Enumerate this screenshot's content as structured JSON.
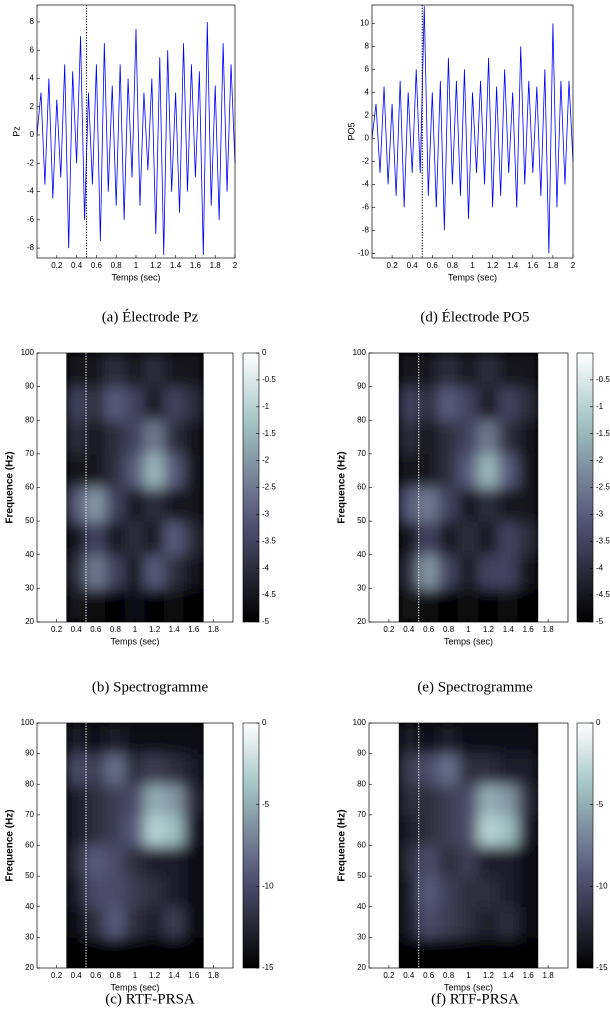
{
  "chart_data": [
    {
      "type": "line",
      "caption": "(a) Électrode Pz",
      "xlabel": "Temps (sec)",
      "ylabel": "Pz",
      "color": "#0000ff",
      "marker_x": 0.5,
      "x": [
        0,
        0.04,
        0.08,
        0.12,
        0.16,
        0.2,
        0.24,
        0.28,
        0.32,
        0.36,
        0.4,
        0.44,
        0.48,
        0.52,
        0.56,
        0.6,
        0.64,
        0.68,
        0.72,
        0.76,
        0.8,
        0.84,
        0.88,
        0.92,
        0.96,
        1,
        1.04,
        1.08,
        1.12,
        1.16,
        1.2,
        1.24,
        1.28,
        1.32,
        1.36,
        1.4,
        1.44,
        1.48,
        1.52,
        1.56,
        1.6,
        1.64,
        1.68,
        1.72,
        1.76,
        1.8,
        1.84,
        1.88,
        1.92,
        1.96,
        2
      ],
      "values": [
        0,
        3,
        -3.5,
        4,
        -4.5,
        2.5,
        -3,
        5,
        -8,
        4.5,
        -2,
        7,
        -6,
        3,
        -3.5,
        5,
        -7.5,
        6.5,
        -4,
        3.5,
        -5,
        5,
        -6,
        4,
        -3,
        7.5,
        -5,
        3,
        -2.5,
        4,
        -7,
        5.5,
        -8.5,
        6,
        -4,
        3,
        -5.5,
        6.5,
        -4,
        5,
        -3,
        4.5,
        -8.5,
        8,
        -5,
        3.5,
        -6,
        6.5,
        -4,
        5,
        -2
      ],
      "xlim": [
        0,
        2
      ],
      "xticks": [
        0.2,
        0.4,
        0.6,
        0.8,
        1,
        1.2,
        1.4,
        1.6,
        1.8,
        2
      ],
      "ylim": [
        -8.7,
        9.2
      ],
      "yticks": [
        -8,
        -6,
        -4,
        -2,
        0,
        2,
        4,
        6,
        8
      ]
    },
    {
      "type": "heatmap",
      "caption": "(b) Spectrogramme",
      "xlabel": "Temps (sec)",
      "ylabel": "Frequence (Hz)",
      "colormap": "bone",
      "marker_x": 0.5,
      "x": [
        0.4,
        0.6,
        0.8,
        1,
        1.2,
        1.4,
        1.6
      ],
      "y": [
        25,
        35,
        45,
        55,
        65,
        75,
        85,
        95
      ],
      "z": [
        [
          -4.5,
          -4.8,
          -5,
          -4.7,
          -5,
          -4.8,
          -5
        ],
        [
          -4,
          -2.5,
          -3.5,
          -4.5,
          -3,
          -4,
          -4.5
        ],
        [
          -4.5,
          -3.5,
          -4.5,
          -4,
          -4.5,
          -3,
          -4
        ],
        [
          -3,
          -2,
          -3.5,
          -4.5,
          -4,
          -4.5,
          -4.5
        ],
        [
          -4.5,
          -4.5,
          -4,
          -3,
          -1.5,
          -3,
          -4.5
        ],
        [
          -4,
          -4.5,
          -4,
          -3.5,
          -2.5,
          -4,
          -4.5
        ],
        [
          -3.5,
          -4,
          -3,
          -3.5,
          -4.5,
          -3.5,
          -4
        ],
        [
          -4.5,
          -4.5,
          -4,
          -4.5,
          -4,
          -4.5,
          -4.5
        ]
      ],
      "xlim": [
        0,
        2
      ],
      "xticks": [
        0.2,
        0.4,
        0.6,
        0.8,
        1,
        1.2,
        1.4,
        1.6,
        1.8
      ],
      "ylim": [
        20,
        100
      ],
      "yticks": [
        20,
        30,
        40,
        50,
        60,
        70,
        80,
        90,
        100
      ],
      "zlim": [
        -5,
        0
      ],
      "zticks": [
        0,
        -0.5,
        -1,
        -1.5,
        -2,
        -2.5,
        -3,
        -3.5,
        -4,
        -4.5,
        -5
      ]
    },
    {
      "type": "heatmap",
      "caption": "(c) RTF-PRSA",
      "xlabel": "Temps (sec)",
      "ylabel": "Frequence (Hz)",
      "colormap": "bone",
      "marker_x": 0.5,
      "x": [
        0.4,
        0.6,
        0.8,
        1,
        1.2,
        1.4,
        1.6
      ],
      "y": [
        25,
        35,
        45,
        55,
        65,
        75,
        85,
        95
      ],
      "z": [
        [
          -15,
          -15,
          -15,
          -15,
          -15,
          -15,
          -15
        ],
        [
          -14,
          -12,
          -9,
          -12,
          -13,
          -11,
          -14
        ],
        [
          -13,
          -10,
          -10,
          -11,
          -12,
          -13,
          -14
        ],
        [
          -12,
          -9,
          -10,
          -12,
          -13,
          -13,
          -14
        ],
        [
          -13,
          -12,
          -11,
          -9,
          -3,
          -4,
          -13
        ],
        [
          -13,
          -12,
          -11,
          -10,
          -5,
          -6,
          -12
        ],
        [
          -10,
          -11,
          -8,
          -12,
          -11,
          -12,
          -13
        ],
        [
          -13,
          -14,
          -13,
          -14,
          -14,
          -14,
          -14
        ]
      ],
      "xlim": [
        0,
        2
      ],
      "xticks": [
        0.2,
        0.4,
        0.6,
        0.8,
        1,
        1.2,
        1.4,
        1.6,
        1.8
      ],
      "ylim": [
        20,
        100
      ],
      "yticks": [
        20,
        30,
        40,
        50,
        60,
        70,
        80,
        90,
        100
      ],
      "zlim": [
        -15,
        0
      ],
      "zticks": [
        0,
        -5,
        -10,
        -15
      ]
    },
    {
      "type": "line",
      "caption": "(d) Électrode PO5",
      "xlabel": "Temps (sec)",
      "ylabel": "PO5",
      "color": "#0000ff",
      "marker_x": 0.5,
      "x": [
        0,
        0.04,
        0.08,
        0.12,
        0.16,
        0.2,
        0.24,
        0.28,
        0.32,
        0.36,
        0.4,
        0.44,
        0.48,
        0.52,
        0.56,
        0.6,
        0.64,
        0.68,
        0.72,
        0.76,
        0.8,
        0.84,
        0.88,
        0.92,
        0.96,
        1,
        1.04,
        1.08,
        1.12,
        1.16,
        1.2,
        1.24,
        1.28,
        1.32,
        1.36,
        1.4,
        1.44,
        1.48,
        1.52,
        1.56,
        1.6,
        1.64,
        1.68,
        1.72,
        1.76,
        1.8,
        1.84,
        1.88,
        1.92,
        1.96,
        2
      ],
      "values": [
        0,
        3,
        -3,
        4.5,
        -4,
        3,
        -5,
        5,
        -6,
        4,
        -3,
        6,
        -3,
        11.5,
        -5,
        4,
        -6,
        5,
        -8,
        7,
        -4,
        5,
        -5,
        6,
        -7,
        4,
        -3,
        5,
        -4,
        7,
        -6,
        4.5,
        -5,
        6,
        -3,
        4,
        -6,
        8,
        -4,
        5,
        -3,
        4.5,
        -5,
        6,
        -10,
        10,
        -6,
        5,
        -4,
        5,
        -2
      ],
      "xlim": [
        0,
        2
      ],
      "xticks": [
        0.2,
        0.4,
        0.6,
        0.8,
        1,
        1.2,
        1.4,
        1.6,
        1.8,
        2
      ],
      "ylim": [
        -10.4,
        11.6
      ],
      "yticks": [
        -10,
        -8,
        -6,
        -4,
        -2,
        0,
        2,
        4,
        6,
        8,
        10
      ]
    },
    {
      "type": "heatmap",
      "caption": "(e) Spectrogramme",
      "xlabel": "Temps (sec)",
      "ylabel": "Frequence (Hz)",
      "colormap": "bone",
      "marker_x": 0.5,
      "x": [
        0.4,
        0.6,
        0.8,
        1,
        1.2,
        1.4,
        1.6
      ],
      "y": [
        25,
        35,
        45,
        55,
        65,
        75,
        85,
        95
      ],
      "z": [
        [
          -4.6,
          -4.8,
          -5,
          -4.8,
          -5,
          -4.8,
          -5
        ],
        [
          -4,
          -2,
          -3.5,
          -4.5,
          -3.5,
          -3.5,
          -4.5
        ],
        [
          -4.5,
          -3.5,
          -4.5,
          -4,
          -4.5,
          -3.5,
          -4
        ],
        [
          -3,
          -2.5,
          -3.5,
          -4.5,
          -4,
          -4.5,
          -4.5
        ],
        [
          -4.5,
          -4.5,
          -4,
          -3,
          -1.5,
          -3,
          -4.5
        ],
        [
          -4,
          -4.5,
          -4,
          -3.5,
          -2.5,
          -4,
          -4.5
        ],
        [
          -3.5,
          -4,
          -3,
          -3.5,
          -4.5,
          -3.5,
          -4
        ],
        [
          -4.5,
          -4.5,
          -4,
          -4.5,
          -4,
          -4.5,
          -4.5
        ]
      ],
      "xlim": [
        0,
        2
      ],
      "xticks": [
        0.2,
        0.4,
        0.6,
        0.8,
        1,
        1.2,
        1.4,
        1.6,
        1.8
      ],
      "ylim": [
        20,
        100
      ],
      "yticks": [
        20,
        30,
        40,
        50,
        60,
        70,
        80,
        90,
        100
      ],
      "zlim": [
        -5,
        0
      ],
      "zticks": [
        -0.5,
        -1,
        -1.5,
        -2,
        -2.5,
        -3,
        -3.5,
        -4,
        -4.5,
        -5
      ]
    },
    {
      "type": "heatmap",
      "caption": "(f) RTF-PRSA",
      "xlabel": "Temps (sec)",
      "ylabel": "Frequence (Hz)",
      "colormap": "bone",
      "marker_x": 0.5,
      "x": [
        0.4,
        0.6,
        0.8,
        1,
        1.2,
        1.4,
        1.6
      ],
      "y": [
        25,
        35,
        45,
        55,
        65,
        75,
        85,
        95
      ],
      "z": [
        [
          -15,
          -15,
          -15,
          -15,
          -15,
          -15,
          -15
        ],
        [
          -13,
          -10,
          -11,
          -12,
          -13,
          -12,
          -14
        ],
        [
          -13,
          -9,
          -11,
          -12,
          -12,
          -13,
          -14
        ],
        [
          -12,
          -10,
          -12,
          -11,
          -13,
          -13,
          -14
        ],
        [
          -13,
          -12,
          -11,
          -10,
          -3,
          -4,
          -13
        ],
        [
          -12,
          -12,
          -11,
          -10,
          -5,
          -6,
          -12
        ],
        [
          -11,
          -10,
          -8,
          -12,
          -12,
          -13,
          -13
        ],
        [
          -13,
          -14,
          -13,
          -14,
          -14,
          -14,
          -14
        ]
      ],
      "xlim": [
        0,
        2
      ],
      "xticks": [
        0.2,
        0.4,
        0.6,
        0.8,
        1,
        1.2,
        1.4,
        1.6,
        1.8
      ],
      "ylim": [
        20,
        100
      ],
      "yticks": [
        20,
        30,
        40,
        50,
        60,
        70,
        80,
        90,
        100
      ],
      "zlim": [
        -15,
        0
      ],
      "zticks": [
        0,
        -5,
        -10,
        -15
      ]
    }
  ]
}
